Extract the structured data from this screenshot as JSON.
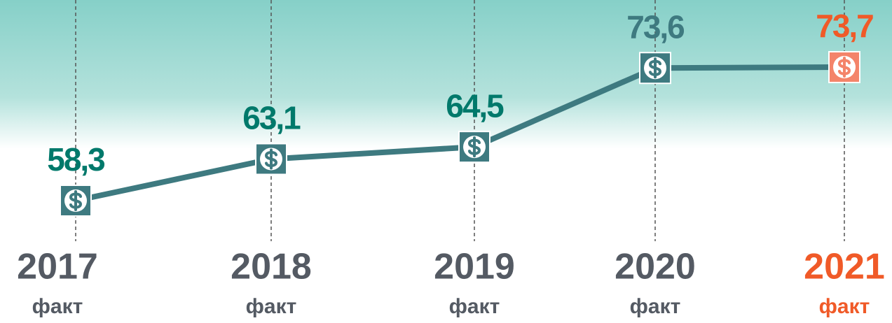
{
  "chart_data": {
    "type": "line",
    "categories": [
      "2017",
      "2018",
      "2019",
      "2020",
      "2021"
    ],
    "sublabels": [
      "факт",
      "факт",
      "факт",
      "факт",
      "факт"
    ],
    "values": [
      58.3,
      63.1,
      64.5,
      73.6,
      73.7
    ],
    "value_labels": [
      "58,3",
      "63,1",
      "64,5",
      "73,6",
      "73,7"
    ],
    "color": "#3e7a80",
    "point_colors": [
      "#3e7a80",
      "#3e7a80",
      "#3e7a80",
      "#3e7a80",
      "#f4846a"
    ],
    "value_label_colors": [
      "#00796b",
      "#00796b",
      "#00796b",
      "#3e7a80",
      "#f05a28"
    ],
    "category_colors": [
      "#545a63",
      "#545a63",
      "#545a63",
      "#545a63",
      "#f05a28"
    ]
  }
}
